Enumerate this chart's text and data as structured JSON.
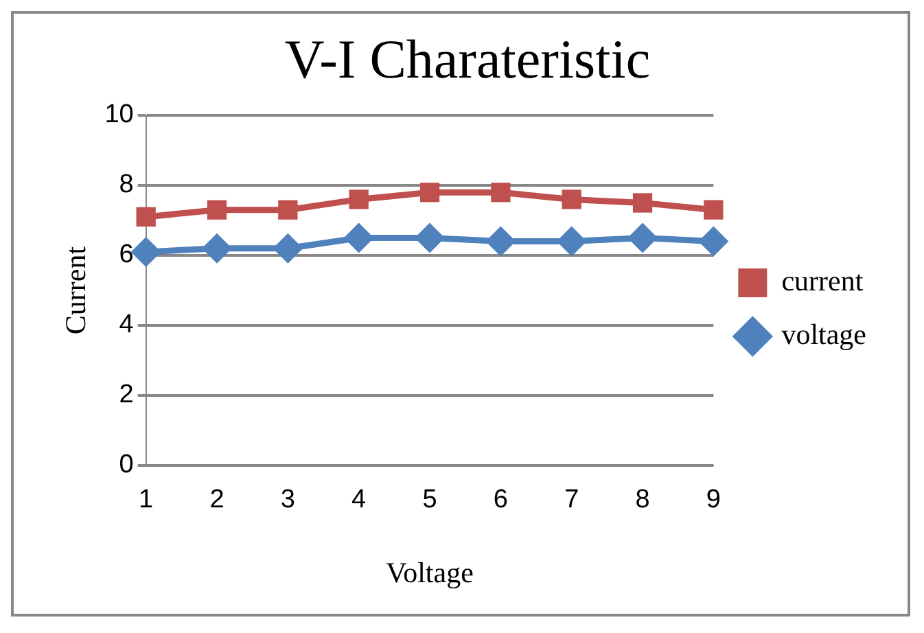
{
  "chart_data": {
    "type": "line",
    "title": "V-I Charateristic",
    "xlabel": "Voltage",
    "ylabel": "Current",
    "categories": [
      "1",
      "2",
      "3",
      "4",
      "5",
      "6",
      "7",
      "8",
      "9"
    ],
    "series": [
      {
        "name": "current",
        "color": "#c0504d",
        "marker": "square",
        "values": [
          7.1,
          7.3,
          7.3,
          7.6,
          7.8,
          7.8,
          7.6,
          7.5,
          7.3
        ]
      },
      {
        "name": "voltage",
        "color": "#4f81bd",
        "marker": "diamond",
        "values": [
          6.1,
          6.2,
          6.2,
          6.5,
          6.5,
          6.4,
          6.4,
          6.5,
          6.4
        ]
      }
    ],
    "ylim": [
      0,
      10
    ],
    "yticks": [
      0,
      2,
      4,
      6,
      8,
      10
    ],
    "grid": "y",
    "legend": "right",
    "line_style": "solid"
  }
}
